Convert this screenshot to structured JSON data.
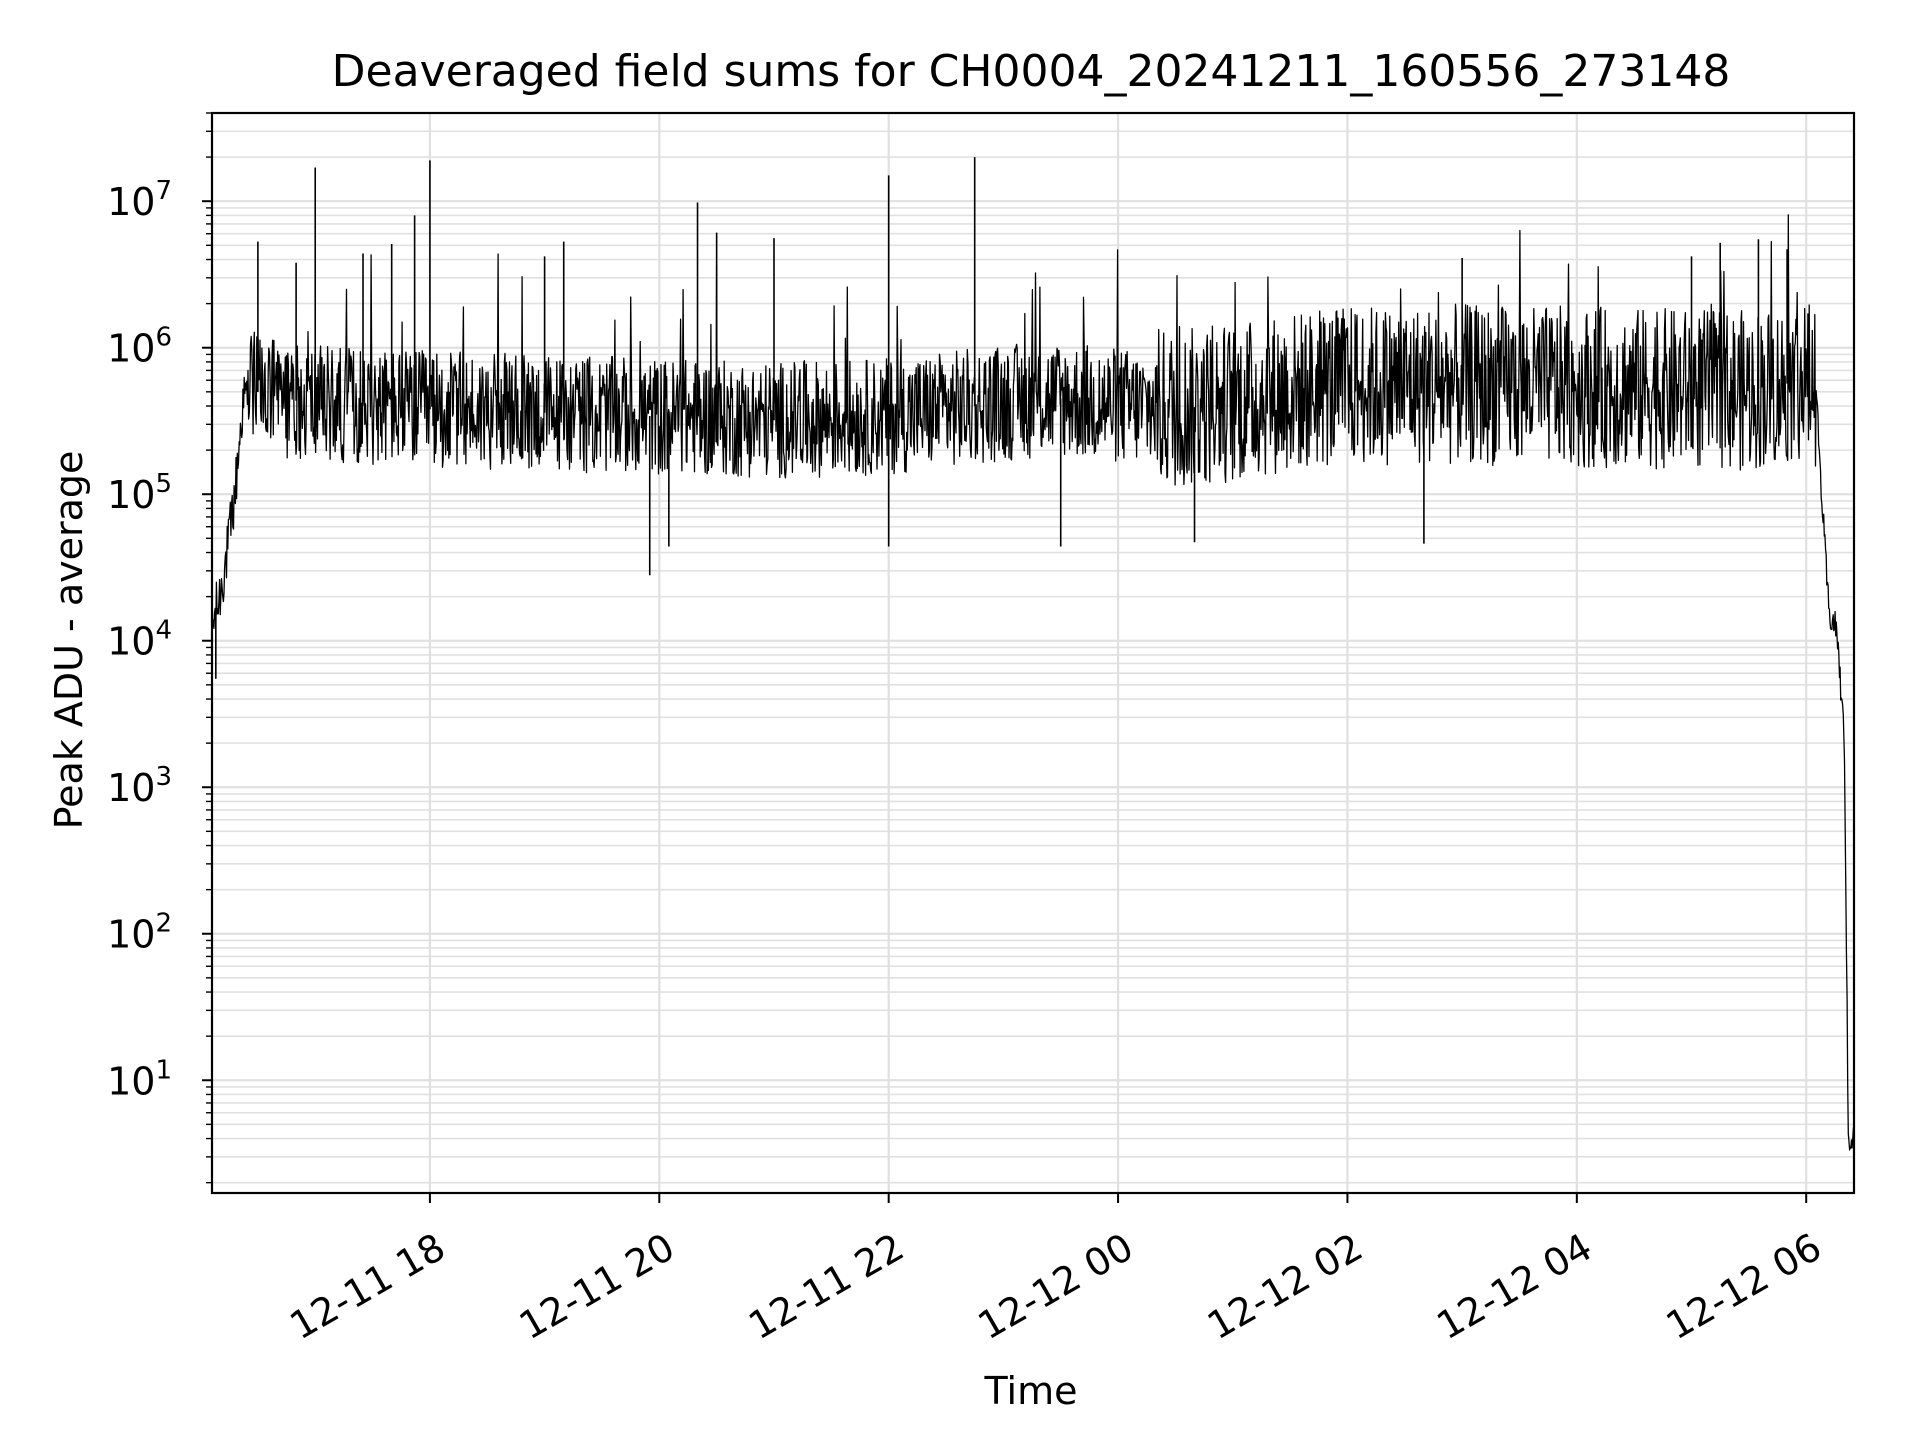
{
  "chart_data": {
    "type": "line",
    "title": "Deaveraged field sums for CH0004_20241211_160556_273148",
    "xlabel": "Time",
    "ylabel": "Peak ADU - average",
    "yscale": "log",
    "ylim": [
      1.7,
      40000000
    ],
    "xlim": [
      "2024-12-11 16:06",
      "2024-12-12 06:25"
    ],
    "x_ticks": [
      "12-11 18",
      "12-11 20",
      "12-11 22",
      "12-12 00",
      "12-12 02",
      "12-12 04",
      "12-12 06"
    ],
    "x_tick_times": [
      "2024-12-11 18:00",
      "2024-12-11 20:00",
      "2024-12-11 22:00",
      "2024-12-12 00:00",
      "2024-12-12 02:00",
      "2024-12-12 04:00",
      "2024-12-12 06:00"
    ],
    "y_ticks": [
      {
        "base": "10",
        "exp": "1",
        "value": 10
      },
      {
        "base": "10",
        "exp": "2",
        "value": 100
      },
      {
        "base": "10",
        "exp": "3",
        "value": 1000
      },
      {
        "base": "10",
        "exp": "4",
        "value": 10000
      },
      {
        "base": "10",
        "exp": "5",
        "value": 100000
      },
      {
        "base": "10",
        "exp": "6",
        "value": 1000000
      },
      {
        "base": "10",
        "exp": "7",
        "value": 10000000
      }
    ],
    "grid": true,
    "line_color": "#000000",
    "grid_color": "#e0e0e0",
    "series": [
      {
        "x": [
          "2024-12-11 16:06",
          "2024-12-11 16:10",
          "2024-12-11 16:14",
          "2024-12-11 16:18",
          "2024-12-11 16:22",
          "2024-12-11 16:26",
          "2024-12-11 16:30",
          "2024-12-11 16:40",
          "2024-12-11 17:00",
          "2024-12-11 17:30",
          "2024-12-11 18:00",
          "2024-12-11 18:30",
          "2024-12-11 19:00",
          "2024-12-11 19:30",
          "2024-12-11 20:00",
          "2024-12-11 20:30",
          "2024-12-11 21:00",
          "2024-12-11 21:30",
          "2024-12-11 22:00",
          "2024-12-11 22:30",
          "2024-12-11 23:00",
          "2024-12-11 23:30",
          "2024-12-12 00:00",
          "2024-12-12 00:30",
          "2024-12-12 01:00",
          "2024-12-12 01:30",
          "2024-12-12 02:00",
          "2024-12-12 02:30",
          "2024-12-12 03:00",
          "2024-12-12 03:30",
          "2024-12-12 04:00",
          "2024-12-12 04:30",
          "2024-12-12 05:00",
          "2024-12-12 05:30",
          "2024-12-12 06:00",
          "2024-12-12 06:05",
          "2024-12-12 06:08",
          "2024-12-12 06:12",
          "2024-12-12 06:16",
          "2024-12-12 06:20",
          "2024-12-12 06:22",
          "2024-12-12 06:25"
        ],
        "y": [
          12000,
          20000,
          40000,
          100000,
          400000,
          550000,
          500000,
          450000,
          420000,
          400000,
          380000,
          370000,
          360000,
          350000,
          340000,
          330000,
          320000,
          330000,
          340000,
          380000,
          420000,
          450000,
          400000,
          380000,
          420000,
          500000,
          550000,
          560000,
          560000,
          550000,
          540000,
          530000,
          520000,
          510000,
          600000,
          550000,
          100000,
          15000,
          12000,
          2000,
          4,
          4
        ],
        "spikes": [
          {
            "x": "2024-12-11 16:30",
            "y": 5300000
          },
          {
            "x": "2024-12-11 16:50",
            "y": 3800000
          },
          {
            "x": "2024-12-11 17:00",
            "y": 17000000
          },
          {
            "x": "2024-12-11 17:25",
            "y": 4400000
          },
          {
            "x": "2024-12-11 17:40",
            "y": 5100000
          },
          {
            "x": "2024-12-11 17:52",
            "y": 8000000
          },
          {
            "x": "2024-12-11 18:00",
            "y": 19000000
          },
          {
            "x": "2024-12-11 19:00",
            "y": 4200000
          },
          {
            "x": "2024-12-11 19:10",
            "y": 5300000
          },
          {
            "x": "2024-12-11 20:20",
            "y": 9800000
          },
          {
            "x": "2024-12-11 20:30",
            "y": 6100000
          },
          {
            "x": "2024-12-11 21:00",
            "y": 5600000
          },
          {
            "x": "2024-12-11 22:00",
            "y": 15000000
          },
          {
            "x": "2024-12-11 22:45",
            "y": 20000000
          },
          {
            "x": "2024-12-12 03:00",
            "y": 4100000
          },
          {
            "x": "2024-12-12 05:00",
            "y": 4200000
          },
          {
            "x": "2024-12-12 05:15",
            "y": 5200000
          },
          {
            "x": "2024-12-12 05:35",
            "y": 5500000
          },
          {
            "x": "2024-12-12 05:50",
            "y": 4700000
          }
        ],
        "dips": [
          {
            "x": "2024-12-11 16:08",
            "y": 5500
          },
          {
            "x": "2024-12-11 19:55",
            "y": 28000
          },
          {
            "x": "2024-12-11 20:05",
            "y": 44000
          },
          {
            "x": "2024-12-11 22:00",
            "y": 44000
          },
          {
            "x": "2024-12-11 23:30",
            "y": 44000
          },
          {
            "x": "2024-12-12 00:40",
            "y": 47000
          },
          {
            "x": "2024-12-12 02:40",
            "y": 46000
          }
        ]
      }
    ]
  }
}
